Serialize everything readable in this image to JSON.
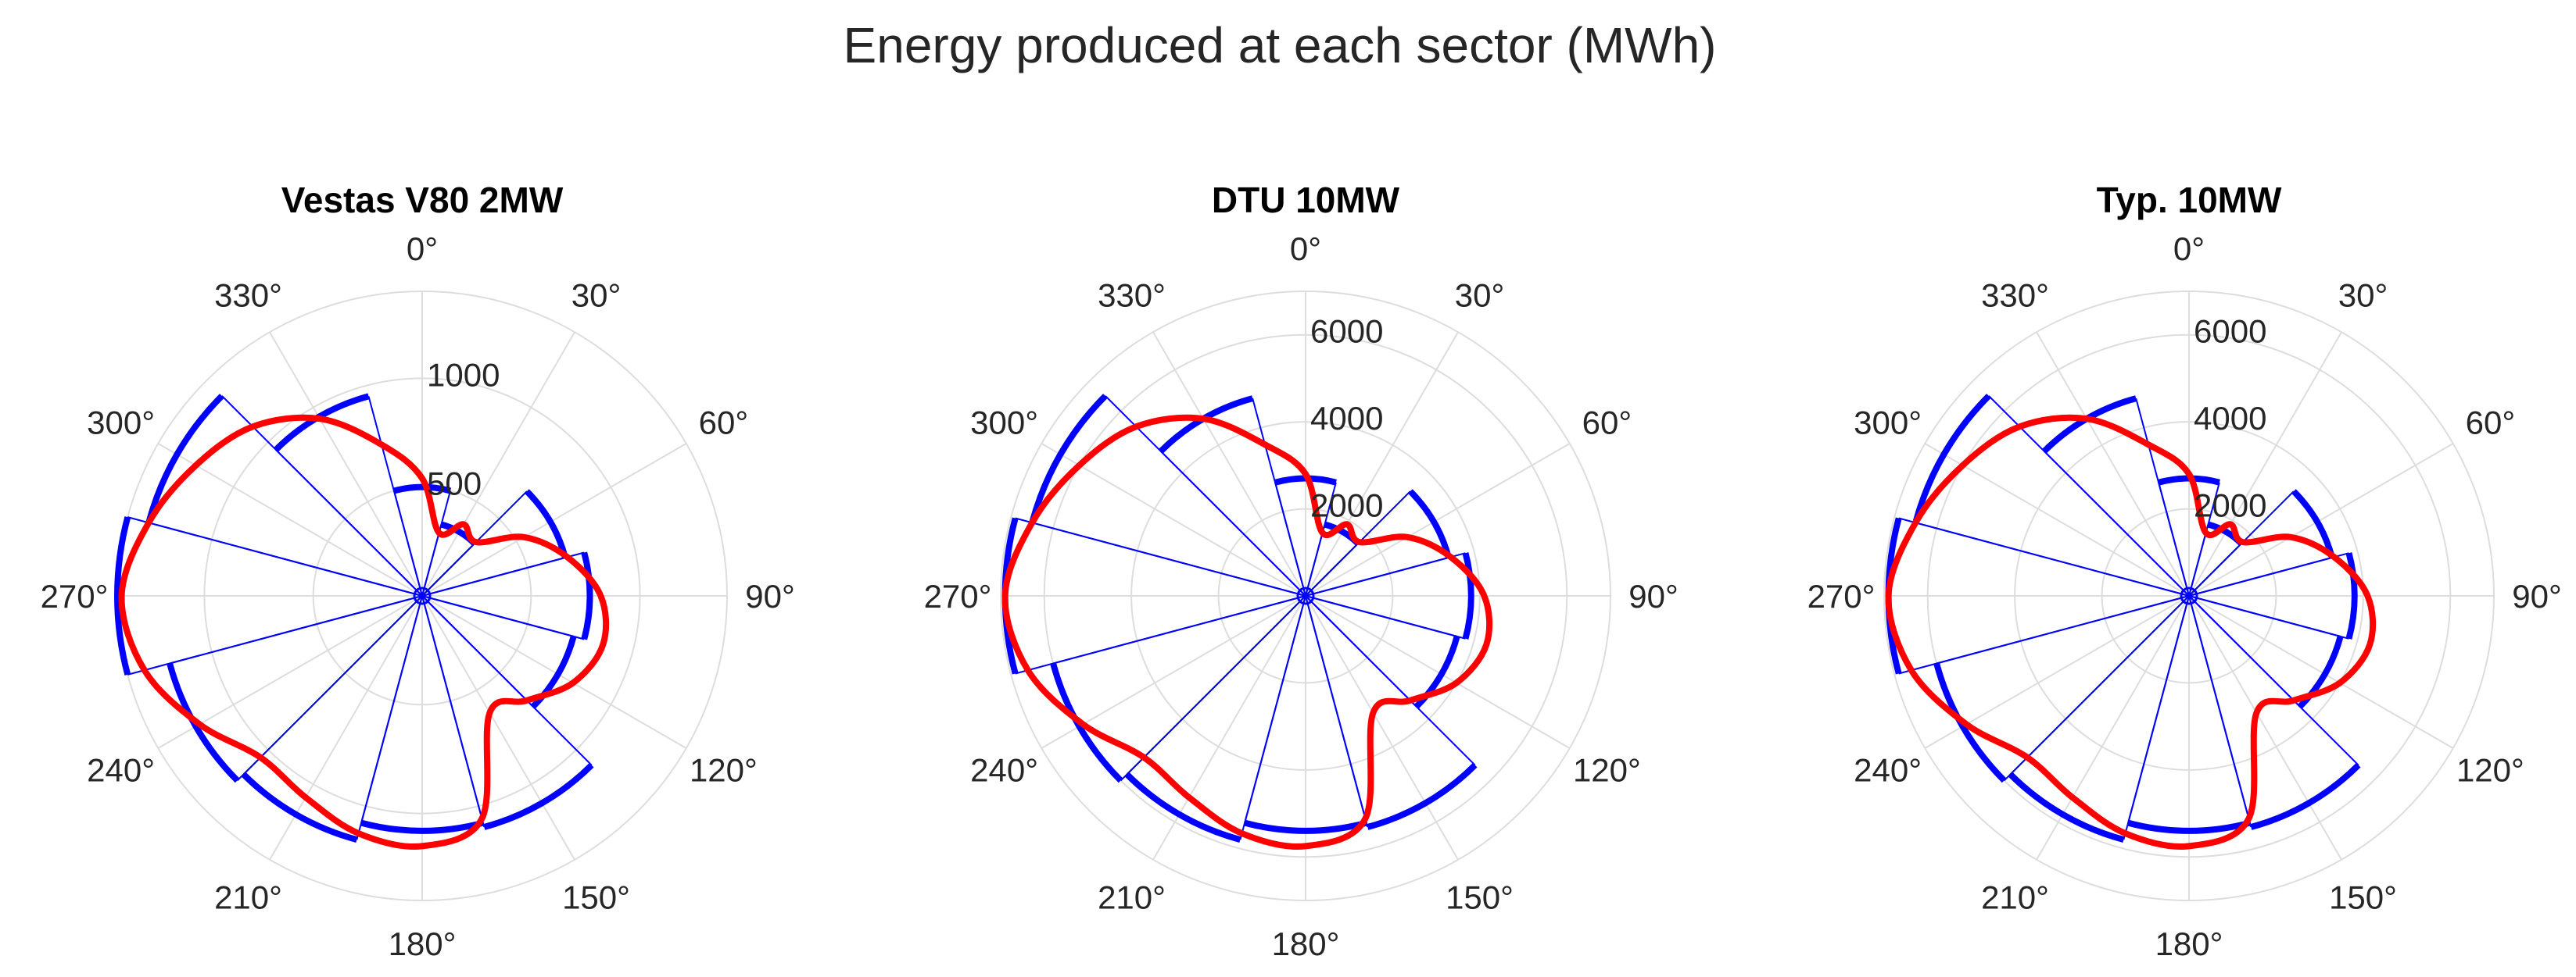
{
  "figure_title": "Energy produced at each sector (MWh)",
  "colors": {
    "bars": "#0000ff",
    "curve": "#ff0000",
    "grid": "#dddddd",
    "text": "#262626"
  },
  "angle_ticks": [
    "0°",
    "30°",
    "60°",
    "90°",
    "120°",
    "150°",
    "180°",
    "210°",
    "240°",
    "270°",
    "300°",
    "330°"
  ],
  "chart_data": [
    {
      "type": "polar",
      "title": "Vestas V80 2MW",
      "rmax": 1400,
      "rticks": [
        500,
        1000
      ],
      "rtick_labels": [
        "500",
        "1000"
      ],
      "sector_width_deg": 30,
      "bar_angles": [
        0,
        30,
        60,
        90,
        120,
        150,
        180,
        210,
        240,
        270,
        300,
        330
      ],
      "bar_values": [
        500,
        340,
        680,
        770,
        720,
        1100,
        1080,
        1160,
        1200,
        1400,
        1300,
        950
      ],
      "curve_angles": [
        0,
        15,
        30,
        45,
        60,
        75,
        90,
        105,
        120,
        135,
        150,
        165,
        180,
        195,
        210,
        225,
        240,
        255,
        270,
        285,
        300,
        315,
        330,
        345
      ],
      "curve_values": [
        540,
        300,
        380,
        350,
        540,
        690,
        820,
        860,
        800,
        680,
        620,
        1060,
        1150,
        1130,
        1070,
        1050,
        1180,
        1320,
        1380,
        1300,
        1200,
        1100,
        940,
        720
      ]
    },
    {
      "type": "polar",
      "title": "DTU 10MW",
      "rmax": 7000,
      "rticks": [
        2000,
        4000,
        6000
      ],
      "rtick_labels": [
        "2000",
        "4000",
        "6000"
      ],
      "sector_width_deg": 30,
      "bar_angles": [
        0,
        30,
        60,
        90,
        120,
        150,
        180,
        210,
        240,
        270,
        300,
        330
      ],
      "bar_values": [
        2700,
        1700,
        3400,
        3800,
        3600,
        5500,
        5400,
        5800,
        6000,
        6900,
        6500,
        4700
      ],
      "curve_angles": [
        0,
        15,
        30,
        45,
        60,
        75,
        90,
        105,
        120,
        135,
        150,
        165,
        180,
        195,
        210,
        225,
        240,
        255,
        270,
        285,
        300,
        315,
        330,
        345
      ],
      "curve_values": [
        2800,
        1500,
        1900,
        1750,
        2700,
        3450,
        4100,
        4300,
        4000,
        3400,
        3100,
        5300,
        5750,
        5650,
        5350,
        5250,
        5900,
        6600,
        6900,
        6500,
        6000,
        5500,
        4700,
        3600
      ]
    },
    {
      "type": "polar",
      "title": "Typ. 10MW",
      "rmax": 7000,
      "rticks": [
        2000,
        4000,
        6000
      ],
      "rtick_labels": [
        "2000",
        "4000",
        "6000"
      ],
      "sector_width_deg": 30,
      "bar_angles": [
        0,
        30,
        60,
        90,
        120,
        150,
        180,
        210,
        240,
        270,
        300,
        330
      ],
      "bar_values": [
        2700,
        1700,
        3400,
        3800,
        3600,
        5500,
        5400,
        5800,
        6000,
        6900,
        6500,
        4700
      ],
      "curve_angles": [
        0,
        15,
        30,
        45,
        60,
        75,
        90,
        105,
        120,
        135,
        150,
        165,
        180,
        195,
        210,
        225,
        240,
        255,
        270,
        285,
        300,
        315,
        330,
        345
      ],
      "curve_values": [
        2800,
        1500,
        1900,
        1750,
        2700,
        3450,
        4100,
        4300,
        4000,
        3400,
        3100,
        5300,
        5750,
        5650,
        5350,
        5250,
        5900,
        6600,
        6900,
        6500,
        6000,
        5500,
        4700,
        3600
      ]
    }
  ]
}
